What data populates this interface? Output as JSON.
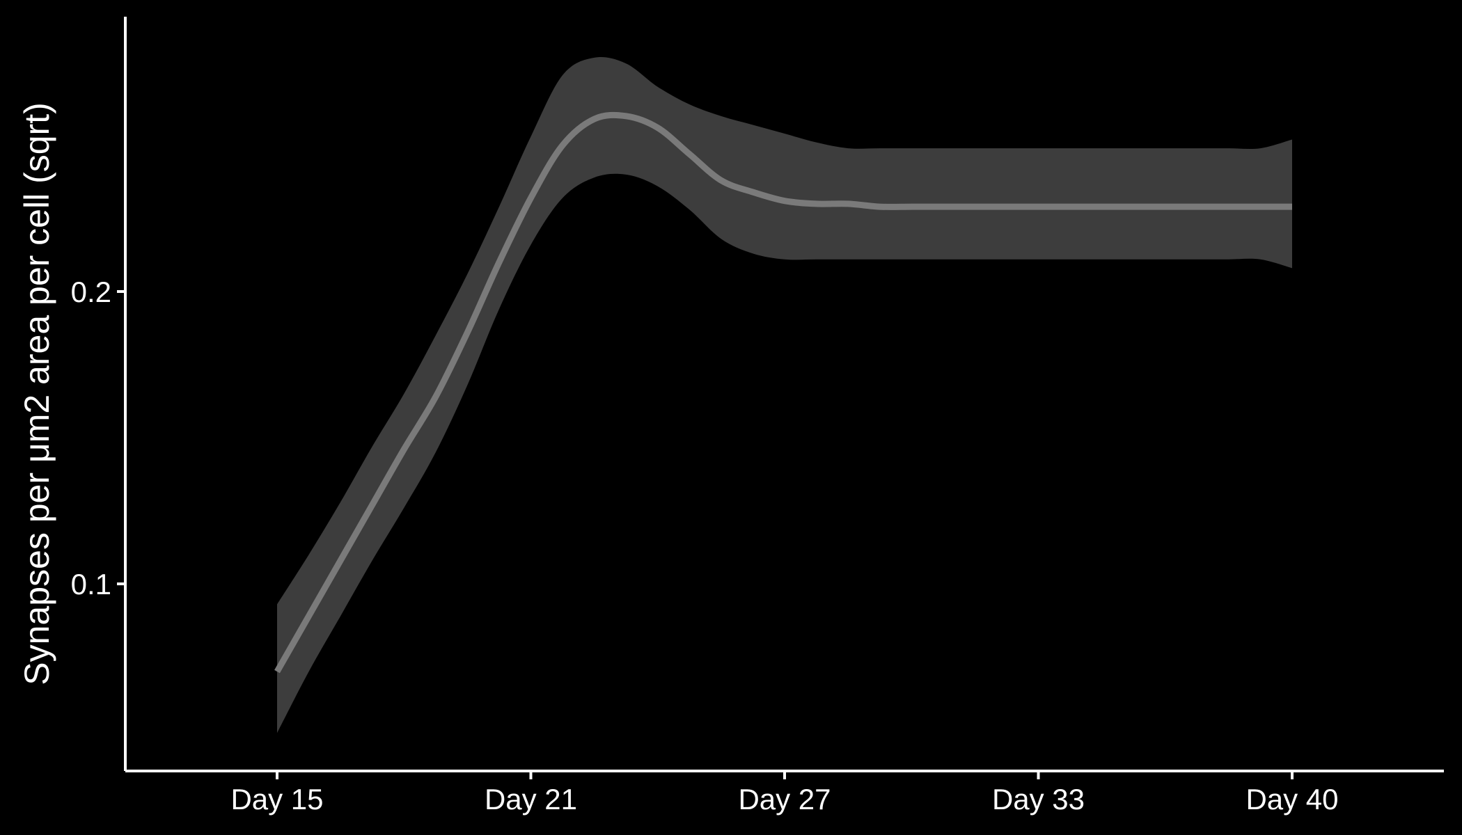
{
  "chart_data": {
    "type": "line",
    "title": "",
    "xlabel": "",
    "ylabel": "Synapses per μm2 area per cell (sqrt)",
    "x_tick_labels": [
      "Day 15",
      "Day 21",
      "Day 27",
      "Day 33",
      "Day 40"
    ],
    "y_ticks": [
      0.1,
      0.2
    ],
    "y_tick_labels": [
      "0.1",
      "0.2"
    ],
    "ylim": [
      0.036,
      0.294
    ],
    "grid": false,
    "legend": "none",
    "colors": {
      "background": "#000000",
      "axis": "#ffffff",
      "line": "#7a7a7a",
      "ribbon": "#3d3d3d"
    },
    "series": [
      {
        "x": [
          0,
          1,
          2,
          3,
          4,
          5,
          6,
          7,
          8,
          9,
          10,
          11,
          12,
          13,
          14,
          15,
          16,
          17,
          18,
          19,
          20,
          21,
          22,
          23,
          24,
          25,
          26,
          27,
          28,
          29,
          30,
          31,
          32
        ],
        "y": [
          0.07,
          0.089,
          0.108,
          0.127,
          0.146,
          0.164,
          0.186,
          0.21,
          0.232,
          0.25,
          0.259,
          0.26,
          0.256,
          0.247,
          0.238,
          0.234,
          0.231,
          0.23,
          0.23,
          0.229,
          0.229,
          0.229,
          0.229,
          0.229,
          0.229,
          0.229,
          0.229,
          0.229,
          0.229,
          0.229,
          0.229,
          0.229,
          0.229
        ],
        "lower": [
          0.049,
          0.07,
          0.089,
          0.108,
          0.126,
          0.145,
          0.168,
          0.194,
          0.216,
          0.232,
          0.239,
          0.24,
          0.236,
          0.228,
          0.218,
          0.213,
          0.211,
          0.211,
          0.211,
          0.211,
          0.211,
          0.211,
          0.211,
          0.211,
          0.211,
          0.211,
          0.211,
          0.211,
          0.211,
          0.211,
          0.211,
          0.211,
          0.208
        ],
        "upper": [
          0.093,
          0.11,
          0.128,
          0.147,
          0.165,
          0.185,
          0.206,
          0.229,
          0.253,
          0.274,
          0.28,
          0.278,
          0.27,
          0.264,
          0.26,
          0.257,
          0.254,
          0.251,
          0.249,
          0.249,
          0.249,
          0.249,
          0.249,
          0.249,
          0.249,
          0.249,
          0.249,
          0.249,
          0.249,
          0.249,
          0.249,
          0.249,
          0.252
        ]
      }
    ]
  }
}
